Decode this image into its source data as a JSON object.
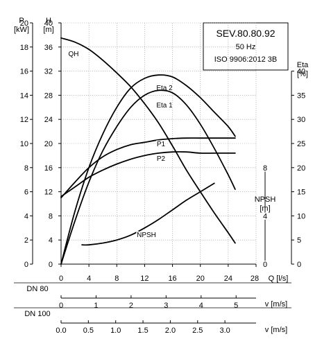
{
  "chart_data": {
    "type": "line",
    "info_box": {
      "model": "SEV.80.80.92",
      "frequency": "50 Hz",
      "standard": "ISO 9906:2012 3B"
    },
    "x_axis": {
      "label": "Q [l/s]",
      "range": [
        0,
        28
      ],
      "ticks": [
        0,
        4,
        8,
        12,
        16,
        20,
        24,
        28
      ],
      "tick_labels": [
        "0",
        "4",
        "8",
        "12",
        "16",
        "20",
        "24",
        "28"
      ]
    },
    "y_axes": {
      "power": {
        "label_top": "P",
        "label_unit": "[kW]",
        "range": [
          0,
          20
        ],
        "ticks": [
          0,
          2,
          4,
          6,
          8,
          10,
          12,
          14,
          16,
          18,
          20
        ],
        "tick_labels": [
          "0",
          "2",
          "4",
          "6",
          "8",
          "10",
          "12",
          "14",
          "16",
          "18",
          "20"
        ]
      },
      "head": {
        "label_top": "H",
        "label_unit": "[m]",
        "range": [
          0,
          40
        ],
        "ticks": [
          0,
          4,
          8,
          12,
          16,
          20,
          24,
          28,
          32,
          36,
          40
        ],
        "tick_labels": [
          "0",
          "4",
          "8",
          "12",
          "16",
          "20",
          "24",
          "28",
          "32",
          "36",
          "40"
        ]
      },
      "efficiency": {
        "label_top": "Eta",
        "label_unit": "[%]",
        "range": [
          0,
          50
        ],
        "ticks": [
          0,
          5,
          10,
          15,
          20,
          25,
          30,
          35,
          40
        ],
        "tick_labels": [
          "0",
          "5",
          "10",
          "15",
          "20",
          "25",
          "30",
          "35",
          "40"
        ]
      },
      "npsh": {
        "label_top": "NPSH",
        "label_unit": "[m]",
        "range": [
          0,
          20
        ],
        "ticks": [
          0,
          4,
          8
        ],
        "tick_labels": [
          "0",
          "4",
          "8"
        ]
      }
    },
    "velocity_axes": [
      {
        "name": "DN 80",
        "unit_label": "v [m/s]",
        "scale_max_q": 28,
        "v_at_scale_max": 5.57,
        "ticks": [
          0,
          1,
          2,
          3,
          4,
          5
        ],
        "tick_labels": [
          "0",
          "1",
          "2",
          "3",
          "4",
          "5"
        ]
      },
      {
        "name": "DN 100",
        "unit_label": "v [m/s]",
        "scale_max_q": 28,
        "v_at_scale_max": 3.57,
        "ticks": [
          0,
          0.5,
          1.0,
          1.5,
          2.0,
          2.5,
          3.0
        ],
        "tick_labels": [
          "0.0",
          "0.5",
          "1.0",
          "1.5",
          "2.0",
          "2.5",
          "3.0"
        ]
      }
    ],
    "series": [
      {
        "name": "QH",
        "axis": "head",
        "label": "QH",
        "x": [
          0,
          2,
          4,
          6,
          8,
          10,
          12,
          14,
          16,
          18,
          20,
          22,
          24,
          25
        ],
        "y": [
          37.5,
          36.8,
          35.6,
          33.8,
          31.7,
          29.4,
          26.6,
          23.4,
          19.6,
          15.6,
          12.0,
          8.5,
          5.2,
          3.5
        ]
      },
      {
        "name": "Eta 2",
        "axis": "efficiency",
        "label": "Eta 2",
        "x": [
          0,
          2,
          4,
          6,
          8,
          10,
          12,
          14,
          16,
          18,
          20,
          22,
          24,
          25
        ],
        "y": [
          0,
          11,
          20,
          27,
          32.5,
          36.5,
          38.5,
          39.2,
          38.8,
          37,
          34.5,
          31.5,
          28.5,
          26.5
        ]
      },
      {
        "name": "Eta 1",
        "axis": "efficiency",
        "label": "Eta 1",
        "x": [
          0,
          2,
          4,
          6,
          8,
          10,
          12,
          14,
          16,
          18,
          20,
          22,
          24,
          25
        ],
        "y": [
          0,
          9,
          17,
          23.5,
          28.5,
          32.5,
          35,
          36,
          35.5,
          33,
          29,
          24,
          18.5,
          15.5
        ]
      },
      {
        "name": "P1",
        "axis": "power",
        "label": "P1",
        "x": [
          0,
          2,
          4,
          6,
          8,
          10,
          12,
          14,
          16,
          18,
          20,
          22,
          24,
          25
        ],
        "y": [
          5.5,
          6.8,
          8.0,
          8.9,
          9.5,
          9.9,
          10.1,
          10.3,
          10.4,
          10.45,
          10.45,
          10.45,
          10.45,
          10.45
        ]
      },
      {
        "name": "P2",
        "axis": "power",
        "label": "P2",
        "x": [
          0,
          2,
          4,
          6,
          8,
          10,
          12,
          14,
          16,
          18,
          20,
          22,
          24,
          25
        ],
        "y": [
          5.6,
          6.4,
          7.2,
          7.8,
          8.3,
          8.7,
          9.0,
          9.2,
          9.3,
          9.3,
          9.2,
          9.2,
          9.2,
          9.2
        ]
      },
      {
        "name": "NPSH",
        "axis": "npsh",
        "label": "NPSH",
        "x": [
          3,
          4,
          6,
          8,
          10,
          12,
          14,
          16,
          18,
          20,
          22
        ],
        "y": [
          1.6,
          1.6,
          1.75,
          2.0,
          2.4,
          3.0,
          3.7,
          4.5,
          5.3,
          6.0,
          6.7
        ]
      }
    ],
    "grid": true,
    "legend": "none"
  }
}
